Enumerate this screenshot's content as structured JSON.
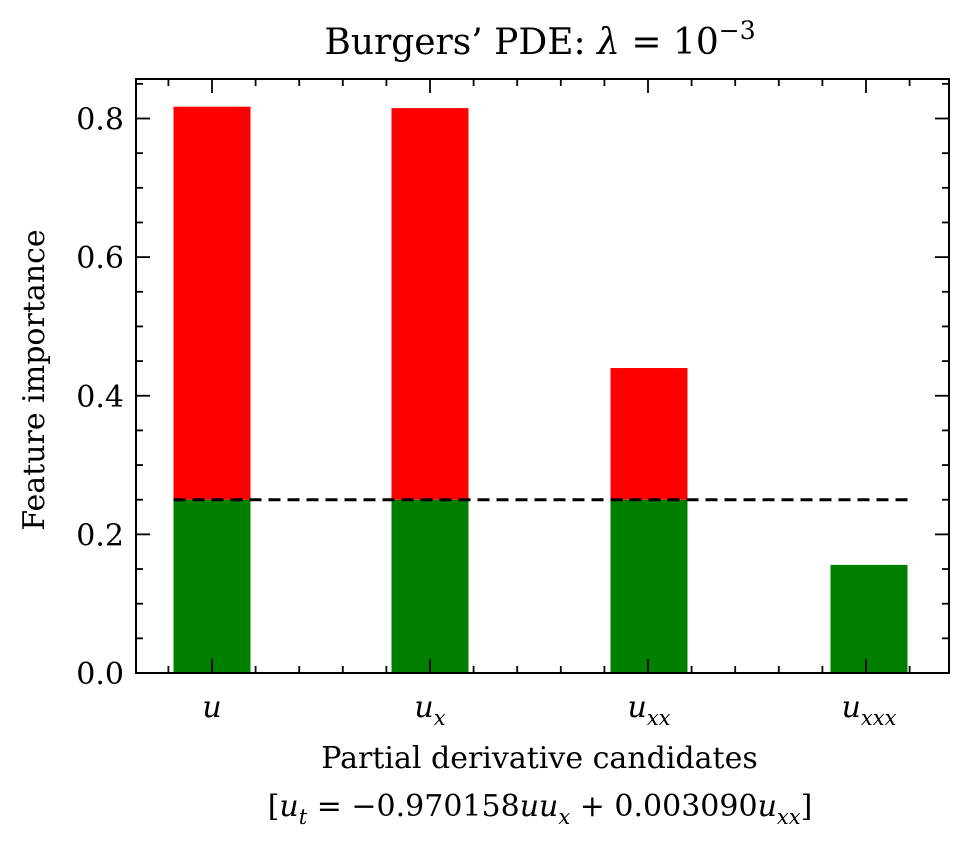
{
  "chart_data": {
    "type": "bar",
    "title": "Burgers’ PDE: λ = 10⁻³",
    "title_parts": {
      "text": "Burgers’ PDE: ",
      "lambda": "λ",
      "eq": " = 10",
      "exp": "−3"
    },
    "xlabel": "Partial derivative candidates",
    "xlabel_line2": "[u_t = −0.970158uu_x + 0.003090u_xx]",
    "equation_parts": {
      "open": "[",
      "u": "u",
      "t": "t",
      "eq": " = −0.970158",
      "uu": "uu",
      "x": "x",
      "plus": " + 0.003090",
      "u2": "u",
      "xx": "xx",
      "close": "]"
    },
    "ylabel": "Feature importance",
    "ylim": [
      0,
      0.857
    ],
    "yticks": [
      "0.0",
      "0.2",
      "0.4",
      "0.6",
      "0.8"
    ],
    "ytick_values": [
      0.0,
      0.2,
      0.4,
      0.6,
      0.8
    ],
    "categories": [
      {
        "base": "u",
        "sub": ""
      },
      {
        "base": "u",
        "sub": "x"
      },
      {
        "base": "u",
        "sub": "xx"
      },
      {
        "base": "u",
        "sub": "xxx"
      }
    ],
    "values": [
      0.817,
      0.815,
      0.44,
      0.156
    ],
    "threshold": 0.25,
    "colors": {
      "above_threshold": "#ff0000",
      "below_threshold": "#008000",
      "threshold_line": "#000000"
    },
    "legend": "none",
    "grid": false
  }
}
